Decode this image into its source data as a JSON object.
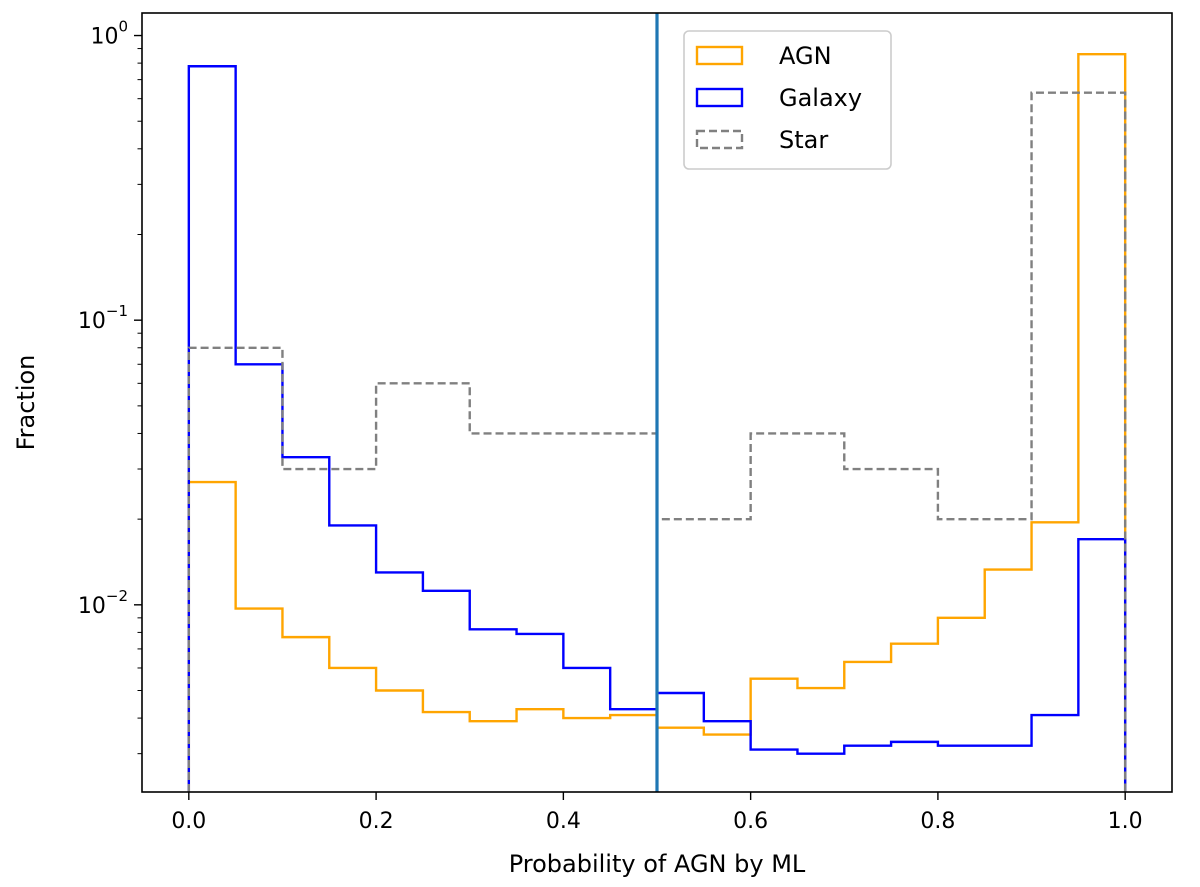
{
  "chart_data": {
    "type": "histogram",
    "title": "",
    "xlabel": "Probability of AGN by ML",
    "ylabel": "Fraction",
    "xlim": [
      -0.05,
      1.05
    ],
    "ylim": [
      0.0022,
      1.2
    ],
    "yscale": "log",
    "grid": false,
    "legend_position": "top-center-right",
    "bin_edges": [
      0.0,
      0.05,
      0.1,
      0.15,
      0.2,
      0.25,
      0.3,
      0.35,
      0.4,
      0.45,
      0.5,
      0.55,
      0.6,
      0.65,
      0.7,
      0.75,
      0.8,
      0.85,
      0.9,
      0.95,
      1.0
    ],
    "x_ticks": [
      {
        "value": 0.0,
        "label": "0.0"
      },
      {
        "value": 0.2,
        "label": "0.2"
      },
      {
        "value": 0.4,
        "label": "0.4"
      },
      {
        "value": 0.6,
        "label": "0.6"
      },
      {
        "value": 0.8,
        "label": "0.8"
      },
      {
        "value": 1.0,
        "label": "1.0"
      }
    ],
    "y_ticks": [
      {
        "value": 1,
        "base": "10",
        "exp": "0"
      },
      {
        "value": 0.1,
        "base": "10",
        "exp": "−1"
      },
      {
        "value": 0.01,
        "base": "10",
        "exp": "−2"
      }
    ],
    "threshold_line": {
      "x": 0.5,
      "color": "#1f77b4"
    },
    "series": [
      {
        "name": "AGN",
        "color": "#ffa500",
        "style": "solid",
        "values": [
          0.027,
          0.0097,
          0.0077,
          0.006,
          0.005,
          0.0042,
          0.0039,
          0.0043,
          0.004,
          0.0041,
          0.0037,
          0.0035,
          0.0055,
          0.0051,
          0.0063,
          0.0073,
          0.009,
          0.0133,
          0.0195,
          0.86
        ]
      },
      {
        "name": "Galaxy",
        "color": "#0000ff",
        "style": "solid",
        "values": [
          0.78,
          0.07,
          0.033,
          0.019,
          0.013,
          0.0112,
          0.0082,
          0.0079,
          0.006,
          0.0043,
          0.0049,
          0.0039,
          0.0031,
          0.003,
          0.0032,
          0.0033,
          0.0032,
          0.0032,
          0.0041,
          0.017
        ]
      },
      {
        "name": "Star",
        "color": "#808080",
        "style": "dashed",
        "values": [
          0.08,
          0.08,
          0.03,
          0.03,
          0.06,
          0.06,
          0.04,
          0.04,
          0.04,
          0.04,
          0.02,
          0.02,
          0.04,
          0.04,
          0.03,
          0.03,
          0.02,
          0.02,
          0.63,
          0.63
        ]
      }
    ]
  }
}
